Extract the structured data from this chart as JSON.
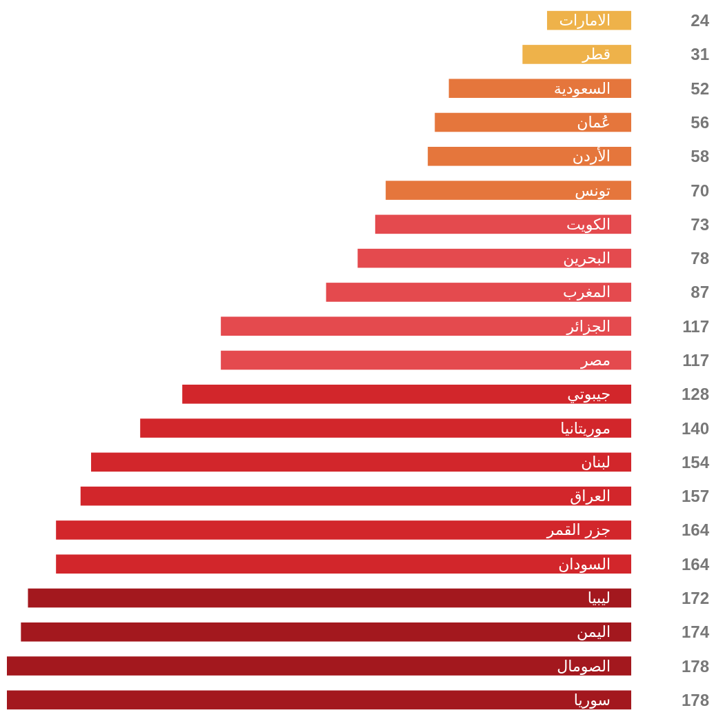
{
  "chart_data": {
    "type": "bar",
    "orientation": "horizontal",
    "categories": [
      "الامارات",
      "قطر",
      "السعودية",
      "عُمان",
      "الأردن",
      "تونس",
      "الكويت",
      "البحرين",
      "المغرب",
      "الجزائر",
      "مصر",
      "جيبوتي",
      "موريتانيا",
      "لبنان",
      "العراق",
      "جزر القمر",
      "السودان",
      "ليبيا",
      "اليمن",
      "الصومال",
      "سوريا"
    ],
    "values": [
      24,
      31,
      52,
      56,
      58,
      70,
      73,
      78,
      87,
      117,
      117,
      128,
      140,
      154,
      157,
      164,
      164,
      172,
      174,
      178,
      178
    ],
    "colors": [
      "#eeb24a",
      "#eeb24a",
      "#e5763c",
      "#e5763c",
      "#e5763c",
      "#e5763c",
      "#e44a4e",
      "#e44a4e",
      "#e44a4e",
      "#e44a4e",
      "#e44a4e",
      "#d2262b",
      "#d2262b",
      "#d2262b",
      "#d2262b",
      "#d2262b",
      "#d2262b",
      "#a3181e",
      "#a3181e",
      "#a3181e",
      "#a3181e"
    ],
    "data_labels": true
  }
}
